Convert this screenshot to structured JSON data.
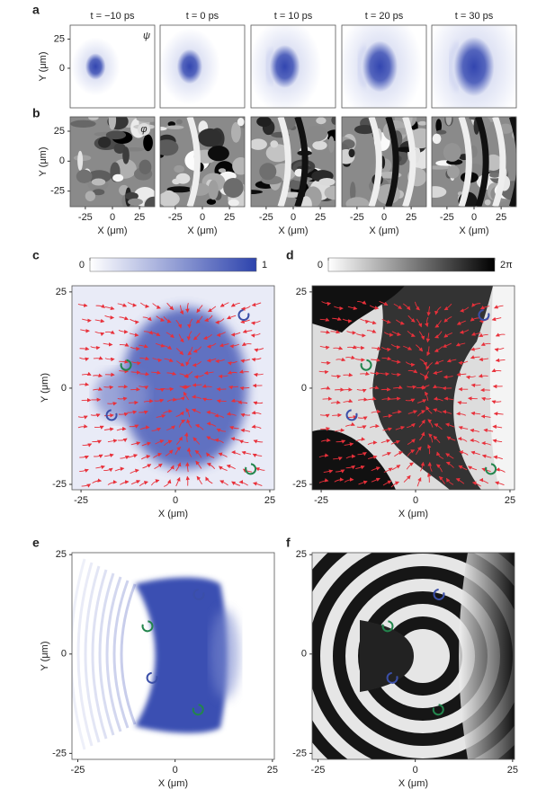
{
  "panels": {
    "a": {
      "label": "a",
      "titles": [
        "t = −10 ps",
        "t = 0 ps",
        "t = 10 ps",
        "t = 20 ps",
        "t = 30 ps"
      ],
      "symbol": "ψ",
      "y_label": "Y (μm)",
      "xlim": [
        -39,
        39
      ],
      "ylim": [
        -34,
        37
      ],
      "yticks": [
        25,
        0
      ]
    },
    "b": {
      "label": "b",
      "symbol": "φ",
      "y_label": "Y (μm)",
      "x_label": "X (μm)",
      "xlim": [
        -39,
        39
      ],
      "ylim": [
        -38,
        37
      ],
      "xticks": [
        -25,
        0,
        25
      ],
      "yticks": [
        25,
        0,
        -25
      ]
    },
    "c": {
      "label": "c",
      "x_label": "X (μm)",
      "y_label": "Y (μm)",
      "xlim": [
        -27.4,
        26.2
      ],
      "ylim": [
        -26.4,
        26.6
      ],
      "xticks": [
        -25,
        0,
        25
      ],
      "yticks": [
        25,
        0,
        -25
      ],
      "colorbar": {
        "lim": [
          0,
          1
        ],
        "ticks": [
          0,
          1
        ]
      }
    },
    "d": {
      "label": "d",
      "x_label": "X (μm)",
      "xlim": [
        -27.4,
        26.2
      ],
      "ylim": [
        -26.4,
        26.6
      ],
      "xticks": [
        -25,
        0,
        25
      ],
      "yticks": [
        25,
        0,
        -25
      ],
      "colorbar": {
        "lim": [
          0,
          6.283
        ],
        "ticks": [
          0,
          {
            "value": 6.283,
            "label": "2π"
          }
        ]
      }
    },
    "e": {
      "label": "e",
      "x_label": "X (μm)",
      "y_label": "Y (μm)",
      "xlim": [
        -26.5,
        25.5
      ],
      "ylim": [
        -26.5,
        25.5
      ],
      "xticks": [
        -25,
        0,
        25
      ],
      "yticks": [
        25,
        0,
        -25
      ]
    },
    "f": {
      "label": "f",
      "x_label": "X (μm)",
      "xlim": [
        -26.5,
        25.5
      ],
      "ylim": [
        -26.5,
        25.5
      ],
      "xticks": [
        -25,
        0,
        25
      ],
      "yticks": [
        25,
        0,
        -25
      ]
    }
  }
}
